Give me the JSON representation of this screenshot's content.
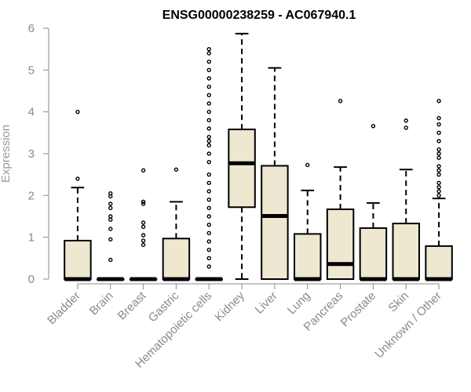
{
  "chart_data": {
    "type": "box",
    "title": "ENSG00000238259 - AC067940.1",
    "xlabel": "",
    "ylabel": "Expression",
    "ylim": [
      0,
      6
    ],
    "yticks": [
      "0",
      "1",
      "2",
      "3",
      "4",
      "5",
      "6"
    ],
    "grid": false,
    "box_fill": "#EEE8D0",
    "categories": [
      "Bladder",
      "Brain",
      "Breast",
      "Gastric",
      "Hematopoietic cells",
      "Kidney",
      "Liver",
      "Lung",
      "Pancreas",
      "Prostate",
      "Skin",
      "Unknown / Other"
    ],
    "boxes": [
      {
        "min": 0,
        "q1": 0,
        "median": 0,
        "q3": 0.92,
        "max": 2.19,
        "outliers": [
          2.4,
          4.0
        ]
      },
      {
        "min": 0,
        "q1": 0,
        "median": 0,
        "q3": 0,
        "max": 0,
        "outliers": [
          0.46,
          0.95,
          1.2,
          1.42,
          1.5,
          1.7,
          1.8,
          1.98,
          2.05
        ]
      },
      {
        "min": 0,
        "q1": 0,
        "median": 0,
        "q3": 0,
        "max": 0,
        "outliers": [
          0.82,
          0.92,
          1.05,
          1.25,
          1.35,
          1.8,
          1.85,
          2.6
        ]
      },
      {
        "min": 0,
        "q1": 0,
        "median": 0,
        "q3": 0.97,
        "max": 1.85,
        "outliers": [
          2.62
        ]
      },
      {
        "min": 0,
        "q1": 0,
        "median": 0,
        "q3": 0,
        "max": 0,
        "outliers": [
          0.3,
          0.5,
          0.7,
          0.9,
          1.1,
          1.3,
          1.5,
          1.7,
          1.9,
          2.1,
          2.3,
          2.5,
          2.8,
          3.0,
          3.2,
          3.3,
          3.4,
          3.6,
          3.8,
          4.0,
          4.2,
          4.4,
          4.6,
          4.8,
          5.0,
          5.2,
          5.4,
          5.5
        ]
      },
      {
        "min": 0,
        "q1": 1.72,
        "median": 2.77,
        "q3": 3.58,
        "max": 5.87,
        "outliers": []
      },
      {
        "min": 0,
        "q1": 0,
        "median": 1.51,
        "q3": 2.71,
        "max": 5.05,
        "outliers": []
      },
      {
        "min": 0,
        "q1": 0,
        "median": 0,
        "q3": 1.08,
        "max": 2.12,
        "outliers": [
          2.73
        ]
      },
      {
        "min": 0,
        "q1": 0,
        "median": 0.36,
        "q3": 1.67,
        "max": 2.68,
        "outliers": [
          4.26
        ]
      },
      {
        "min": 0,
        "q1": 0,
        "median": 0,
        "q3": 1.22,
        "max": 1.82,
        "outliers": [
          3.66
        ]
      },
      {
        "min": 0,
        "q1": 0,
        "median": 0,
        "q3": 1.33,
        "max": 2.62,
        "outliers": [
          3.62,
          3.79
        ]
      },
      {
        "min": 0,
        "q1": 0,
        "median": 0,
        "q3": 0.79,
        "max": 1.93,
        "outliers": [
          2.0,
          2.1,
          2.2,
          2.3,
          2.5,
          2.6,
          2.7,
          2.9,
          3.0,
          3.1,
          3.3,
          3.5,
          3.7,
          3.85,
          4.26
        ]
      }
    ]
  }
}
